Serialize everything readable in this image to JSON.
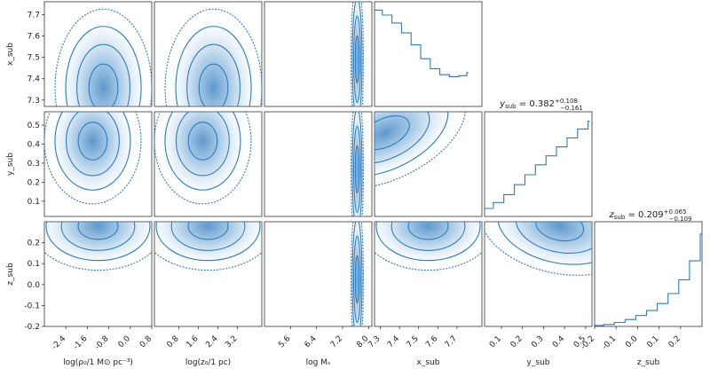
{
  "chart_data": {
    "type": "corner",
    "color": "#2f7bbf",
    "parameters": [
      {
        "label": "log(ρ₀/1 M⊙ pc⁻³)",
        "range": [
          -3.2,
          0.8
        ],
        "ticks": [
          "-2.4",
          "-1.6",
          "-0.8",
          "0.0",
          "0.8"
        ],
        "tick_values": [
          -2.4,
          -1.6,
          -0.8,
          0.0,
          0.8
        ]
      },
      {
        "label": "log(z₀/1 pc)",
        "range": [
          -0.2,
          4.2
        ],
        "ticks": [
          "0.8",
          "1.6",
          "2.4",
          "3.2"
        ],
        "tick_values": [
          0.8,
          1.6,
          2.4,
          3.2
        ]
      },
      {
        "label": "log Mₛ",
        "range": [
          4.8,
          8.1
        ],
        "ticks": [
          "5.6",
          "6.4",
          "7.2",
          "8.0"
        ],
        "tick_values": [
          5.6,
          6.4,
          7.2,
          8.0
        ]
      },
      {
        "label": "x_sub",
        "range": [
          7.27,
          7.83
        ],
        "ticks": [
          "7.3",
          "7.4",
          "7.5",
          "7.6",
          "7.7"
        ],
        "tick_values": [
          7.3,
          7.4,
          7.5,
          7.6,
          7.7
        ]
      },
      {
        "label": "y_sub",
        "range": [
          0.02,
          0.53
        ],
        "ticks": [
          "0.1",
          "0.2",
          "0.3",
          "0.4",
          "0.5"
        ],
        "tick_values": [
          0.1,
          0.2,
          0.3,
          0.4,
          0.5
        ]
      },
      {
        "label": "z_sub",
        "range": [
          -0.2,
          0.3
        ],
        "ticks": [
          "-0.2",
          "-0.1",
          "0.0",
          "0.1",
          "0.2"
        ],
        "tick_values": [
          -0.2,
          -0.1,
          0.0,
          0.1,
          0.2
        ]
      }
    ],
    "rows": [
      {
        "label": "x_sub",
        "range": [
          7.27,
          7.76
        ],
        "ticks": [
          "7.3",
          "7.4",
          "7.5",
          "7.6",
          "7.7"
        ],
        "tick_values": [
          7.3,
          7.4,
          7.5,
          7.6,
          7.7
        ]
      },
      {
        "label": "y_sub",
        "range": [
          0.02,
          0.57
        ],
        "ticks": [
          "0.1",
          "0.2",
          "0.3",
          "0.4",
          "0.5"
        ],
        "tick_values": [
          0.1,
          0.2,
          0.3,
          0.4,
          0.5
        ]
      },
      {
        "label": "z_sub",
        "range": [
          -0.2,
          0.3
        ],
        "ticks": [
          "-0.2",
          "-0.1",
          "0.0",
          "0.1",
          "0.2"
        ],
        "tick_values": [
          -0.2,
          -0.1,
          0.0,
          0.1,
          0.2
        ]
      }
    ],
    "marginal_titles": [
      {
        "param": "y_sub",
        "median": "0.382",
        "plus": "+0.108",
        "minus": "−0.161"
      },
      {
        "param": "z_sub",
        "median": "0.209",
        "plus": "+0.065",
        "minus": "−0.109"
      }
    ],
    "histograms": {
      "x_sub": {
        "x": [
          7.27,
          7.32,
          7.37,
          7.42,
          7.47,
          7.52,
          7.57,
          7.62,
          7.67,
          7.72,
          7.76
        ],
        "density": [
          0.97,
          0.92,
          0.84,
          0.74,
          0.62,
          0.48,
          0.38,
          0.32,
          0.3,
          0.31,
          0.34
        ]
      },
      "y_sub": {
        "x": [
          0.02,
          0.07,
          0.12,
          0.17,
          0.22,
          0.27,
          0.32,
          0.37,
          0.42,
          0.47,
          0.52
        ],
        "density": [
          0.08,
          0.14,
          0.22,
          0.32,
          0.42,
          0.52,
          0.61,
          0.7,
          0.79,
          0.88,
          0.96
        ]
      },
      "z_sub": {
        "x": [
          -0.2,
          -0.15,
          -0.1,
          -0.05,
          0.0,
          0.05,
          0.1,
          0.15,
          0.2,
          0.25,
          0.3
        ],
        "density": [
          0.01,
          0.02,
          0.04,
          0.07,
          0.11,
          0.16,
          0.23,
          0.33,
          0.47,
          0.66,
          0.93
        ]
      }
    }
  }
}
